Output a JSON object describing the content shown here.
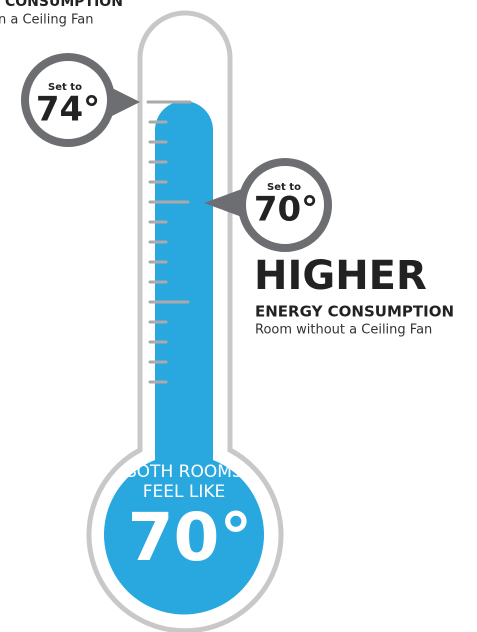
{
  "top_left": {
    "heading": "CONSUMPTION",
    "subtitle": "n a Ceiling Fan"
  },
  "callouts": [
    {
      "label": "Set to",
      "temperature": "74°"
    },
    {
      "label": "Set to",
      "temperature": "70°"
    }
  ],
  "right_label": {
    "heading": "HIGHER",
    "subheading": "ENERGY CONSUMPTION",
    "caption": "Room without a Ceiling Fan"
  },
  "bulb": {
    "line1": "BOTH ROOMS",
    "line2": "FEEL LIKE",
    "temperature": "70°"
  }
}
